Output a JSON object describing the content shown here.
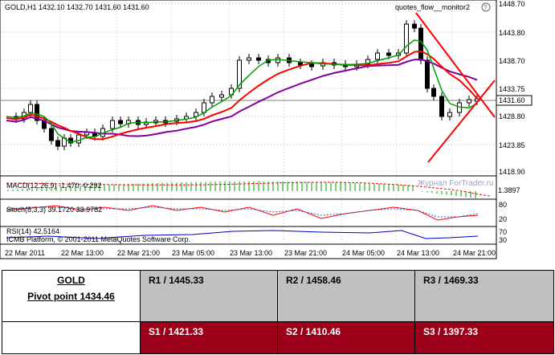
{
  "chart": {
    "header": "GOLD,H1  1432.10 1432.70 1431.60 1431.60",
    "indicator_name": "quotes_flow__monitor2",
    "price_labels": [
      "1448.70",
      "1443.80",
      "1438.70",
      "1433.75",
      "1428.80",
      "1423.85",
      "1418.90"
    ],
    "current_price": "1431.60",
    "macd_label": "MACD(12,26,9) -1.470 -0.292",
    "macd_scale": "1.3897",
    "stoch_label": "Stoch(8,3,3) 39.1720 33.9782",
    "stoch_scale": [
      "80",
      "20"
    ],
    "rsi_label": "RSI(14) 42.5164",
    "rsi_scale": [
      "70",
      "30"
    ],
    "copyright": "ICMB Platform, © 2001-2011 MetaQuotes Software Corp.",
    "watermark": "Журнал ForTrader.ru",
    "time_labels": [
      "22 Mar 2011",
      "22 Mar 13:00",
      "22 Mar 21:00",
      "23 Mar 05:00",
      "23 Mar 13:00",
      "23 Mar 21:00",
      "24 Mar 05:00",
      "24 Mar 13:00",
      "24 Mar 21:00"
    ],
    "colors": {
      "ma_fast": "#00a000",
      "ma_mid": "#ff0000",
      "ma_slow": "#8000a0",
      "trend": "#ff0000",
      "macd": "#00a000",
      "rsi": "#0000c0"
    }
  },
  "table": {
    "symbol": "GOLD",
    "pivot": "Pivot point 1434.46",
    "r1": "R1 / 1445.33",
    "r2": "R2 / 1458.46",
    "r3": "R3 / 1469.33",
    "s1": "S1 / 1421.33",
    "s2": "S2 / 1410.46",
    "s3": "S3 / 1397.33",
    "colors": {
      "resistance_bg": "#c0c0c0",
      "support_bg": "#9c0018"
    }
  }
}
